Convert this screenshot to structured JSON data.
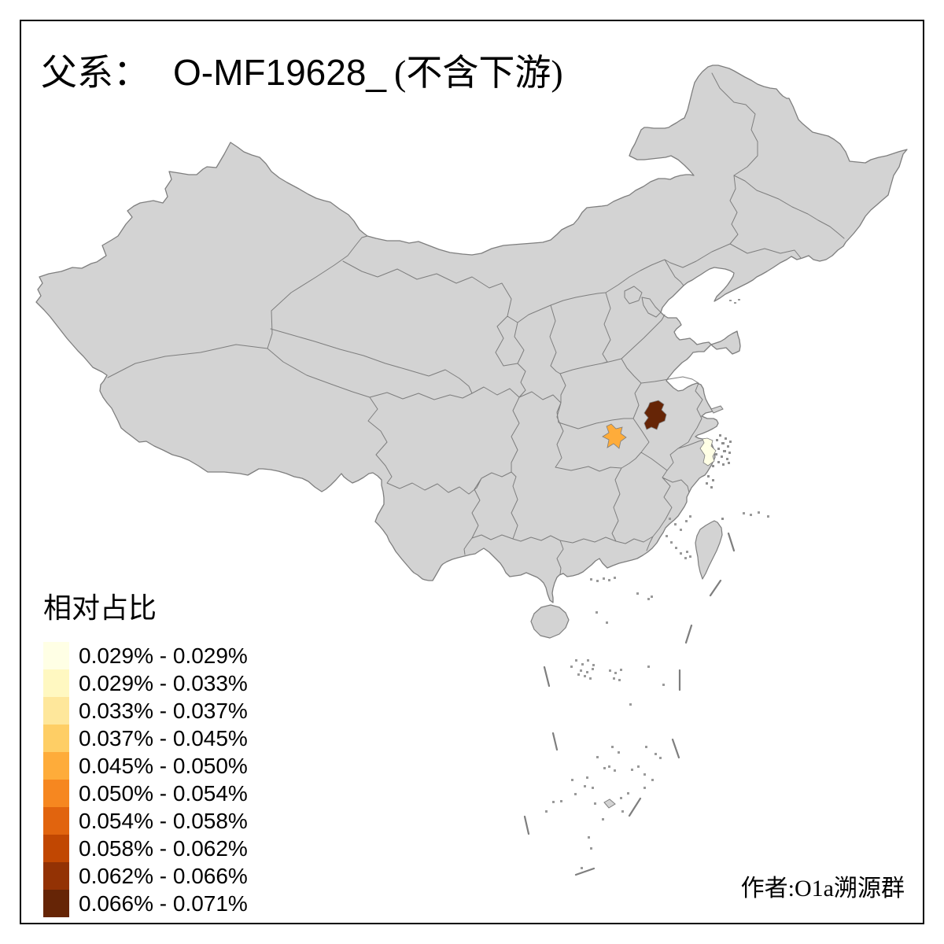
{
  "title": {
    "prefix": "父系：",
    "code": "O-MF19628_",
    "suffix": "(不含下游)"
  },
  "legend": {
    "title": "相对占比",
    "bins": [
      {
        "label": "0.029% - 0.029%",
        "color": "#FFFFE5"
      },
      {
        "label": "0.029% - 0.033%",
        "color": "#FFF8C1"
      },
      {
        "label": "0.033% - 0.037%",
        "color": "#FEE79B"
      },
      {
        "label": "0.037% - 0.045%",
        "color": "#FECE65"
      },
      {
        "label": "0.045% - 0.050%",
        "color": "#FEAC3A"
      },
      {
        "label": "0.050% - 0.054%",
        "color": "#F68720"
      },
      {
        "label": "0.054% - 0.058%",
        "color": "#E1640E"
      },
      {
        "label": "0.058% - 0.062%",
        "color": "#C14702"
      },
      {
        "label": "0.062% - 0.066%",
        "color": "#933204"
      },
      {
        "label": "0.066% - 0.071%",
        "color": "#662506"
      }
    ]
  },
  "author": "作者:O1a溯源群",
  "map": {
    "land": "#D3D3D3",
    "stroke": "#7E7E7E",
    "sea": "#FFFFFF",
    "island_dot": "#9A9A9A",
    "dense_island_dot": "#8F8F8F",
    "highlights": [
      {
        "name": "darkest-region-anhui-area",
        "color": "#662506",
        "bin": "0.066% - 0.071%"
      },
      {
        "name": "orange-region-hubei-area",
        "color": "#FEAC3A",
        "bin": "0.045% - 0.050%"
      },
      {
        "name": "palest-region-zhejiang-coast",
        "color": "#FFFFE5",
        "bin": "0.029% - 0.029%"
      }
    ]
  }
}
